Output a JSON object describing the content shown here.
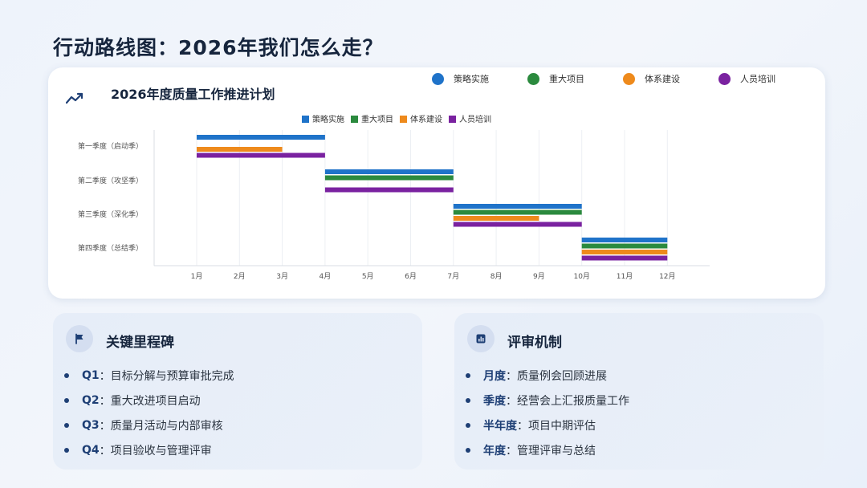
{
  "page_title": "行动路线图：2026年我们怎么走？",
  "chart_card": {
    "outer_legend": [
      {
        "label": "策略实施",
        "color": "#1f73c9"
      },
      {
        "label": "重大项目",
        "color": "#2b8a3e"
      },
      {
        "label": "体系建设",
        "color": "#ee8a1c"
      },
      {
        "label": "人员培训",
        "color": "#7a22a0"
      }
    ]
  },
  "chart_data": {
    "type": "gantt",
    "title": "2026年度质量工作推进计划",
    "legend": [
      {
        "name": "策略实施",
        "color": "#1f73c9"
      },
      {
        "name": "重大项目",
        "color": "#2b8a3e"
      },
      {
        "name": "体系建设",
        "color": "#ee8a1c"
      },
      {
        "name": "人员培训",
        "color": "#7a22a0"
      }
    ],
    "x_ticks": [
      "1月",
      "2月",
      "3月",
      "4月",
      "5月",
      "6月",
      "7月",
      "8月",
      "9月",
      "10月",
      "11月",
      "12月"
    ],
    "categories": [
      "第一季度（启动季）",
      "第二季度（攻坚季）",
      "第三季度（深化季）",
      "第四季度（总结季）"
    ],
    "series": [
      {
        "name": "策略实施",
        "bars": [
          {
            "row": 0,
            "start": 1,
            "end": 4
          },
          {
            "row": 1,
            "start": 4,
            "end": 7
          },
          {
            "row": 2,
            "start": 7,
            "end": 10
          },
          {
            "row": 3,
            "start": 10,
            "end": 12
          }
        ]
      },
      {
        "name": "重大项目",
        "bars": [
          {
            "row": 1,
            "start": 4,
            "end": 7
          },
          {
            "row": 2,
            "start": 7,
            "end": 10
          },
          {
            "row": 3,
            "start": 10,
            "end": 12
          }
        ]
      },
      {
        "name": "体系建设",
        "bars": [
          {
            "row": 0,
            "start": 1,
            "end": 3
          },
          {
            "row": 2,
            "start": 7,
            "end": 9
          },
          {
            "row": 3,
            "start": 10,
            "end": 12
          }
        ]
      },
      {
        "name": "人员培训",
        "bars": [
          {
            "row": 0,
            "start": 1,
            "end": 4
          },
          {
            "row": 1,
            "start": 4,
            "end": 7
          },
          {
            "row": 2,
            "start": 7,
            "end": 10
          },
          {
            "row": 3,
            "start": 10,
            "end": 12
          }
        ]
      }
    ],
    "grid": true,
    "legend_position": "top-center"
  },
  "milestones": {
    "title": "关键里程碑",
    "items": [
      {
        "key": "Q1",
        "sep": "：",
        "text": "目标分解与预算审批完成"
      },
      {
        "key": "Q2",
        "sep": "：",
        "text": "重大改进项目启动"
      },
      {
        "key": "Q3",
        "sep": "：",
        "text": "质量月活动与内部审核"
      },
      {
        "key": "Q4",
        "sep": "：",
        "text": "项目验收与管理评审"
      }
    ]
  },
  "review": {
    "title": "评审机制",
    "items": [
      {
        "key": "月度",
        "sep": "：",
        "text": "质量例会回顾进展"
      },
      {
        "key": "季度",
        "sep": "：",
        "text": "经营会上汇报质量工作"
      },
      {
        "key": "半年度",
        "sep": "：",
        "text": "项目中期评估"
      },
      {
        "key": "年度",
        "sep": "：",
        "text": "管理评审与总结"
      }
    ]
  }
}
